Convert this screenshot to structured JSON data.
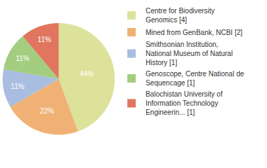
{
  "chart_data": {
    "type": "pie",
    "categories": [
      "Centre for Biodiversity Genomics [4]",
      "Mined from GenBank, NCBI [2]",
      "Smithsonian Institution, National Museum of Natural History [1]",
      "Genoscope, Centre National de Sequencage [1]",
      "Balochistan University of Information Technology Engineerin... [1]"
    ],
    "values": [
      44,
      22,
      11,
      11,
      11
    ],
    "value_labels": [
      "44%",
      "22%",
      "11%",
      "11%",
      "11%"
    ],
    "colors": [
      "#dde29b",
      "#efb274",
      "#a8bde0",
      "#a3cd7f",
      "#e0765f"
    ],
    "data_labels": true,
    "legend": "top right"
  }
}
